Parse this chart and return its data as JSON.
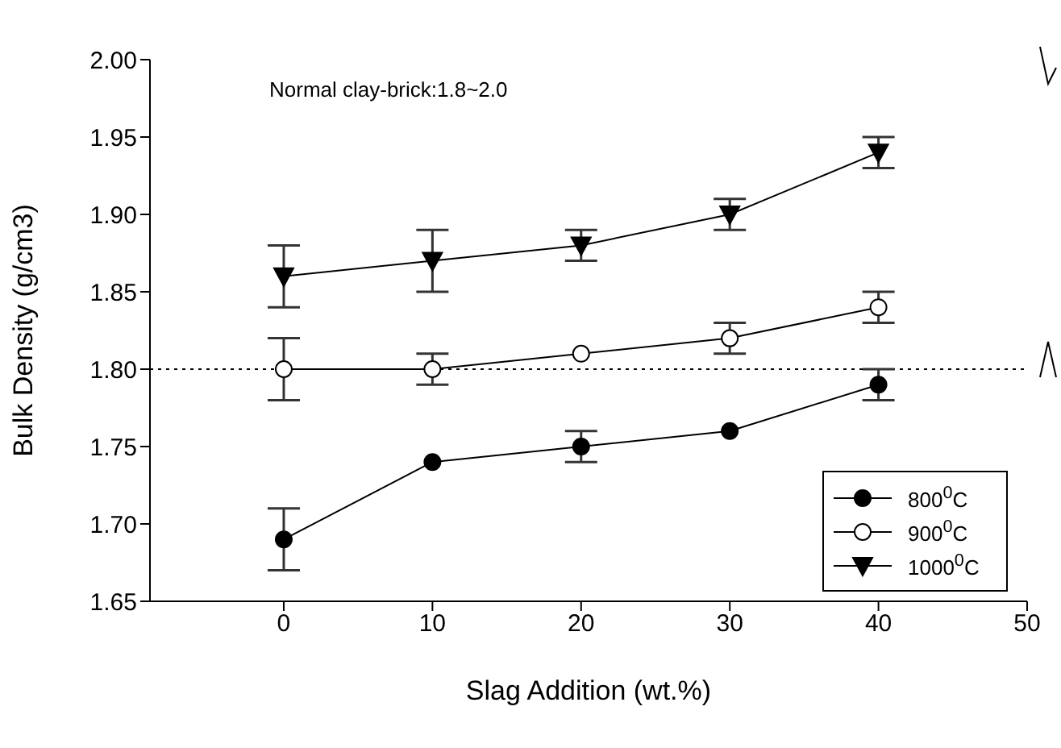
{
  "chart_data": {
    "type": "line",
    "xlabel": "Slag Addition (wt.%)",
    "ylabel": "Bulk Density (g/cm3)",
    "x": [
      0,
      10,
      20,
      30,
      40
    ],
    "series": [
      {
        "name": "800$^{0}$C",
        "color": "#000000",
        "marker": "circle",
        "values": [
          1.69,
          1.74,
          1.75,
          1.76,
          1.79
        ],
        "errors": [
          0.02,
          null,
          0.01,
          null,
          0.01
        ]
      },
      {
        "name": "900$^{0}$C",
        "color": "#000000",
        "marker": "open circle",
        "values": [
          1.8,
          1.8,
          1.81,
          1.82,
          1.84
        ],
        "errors": [
          0.02,
          0.01,
          null,
          0.01,
          0.01
        ]
      },
      {
        "name": "1000$^{0}$C",
        "color": "#000000",
        "marker": "triangle",
        "values": [
          1.86,
          1.87,
          1.88,
          1.9,
          1.94
        ],
        "errors": [
          0.02,
          0.02,
          0.01,
          0.01,
          0.01
        ]
      }
    ],
    "xlim": [
      -9,
      50
    ],
    "xticks": [
      0,
      10,
      20,
      30,
      40,
      50
    ],
    "ylim": [
      1.65,
      2.0
    ],
    "yticks": [
      {
        "value": 1.65,
        "label": "1.65"
      },
      {
        "value": 1.7,
        "label": "1.70"
      },
      {
        "value": 1.75,
        "label": "1.75"
      },
      {
        "value": 1.8,
        "label": "1.80"
      },
      {
        "value": 1.85,
        "label": "1.85"
      },
      {
        "value": 1.9,
        "label": "1.90"
      },
      {
        "value": 1.95,
        "label": "1.95"
      },
      {
        "value": 2.0,
        "label": "2.00"
      }
    ],
    "ref_lines": [
      {
        "axis": "y",
        "value": 1.8,
        "color": "#000000",
        "line_style": "dotted"
      }
    ],
    "annotations": [
      "Normal clay-brick:1.8~2.0"
    ],
    "grid": false,
    "legend": "bottom right",
    "line_style": "solid"
  }
}
